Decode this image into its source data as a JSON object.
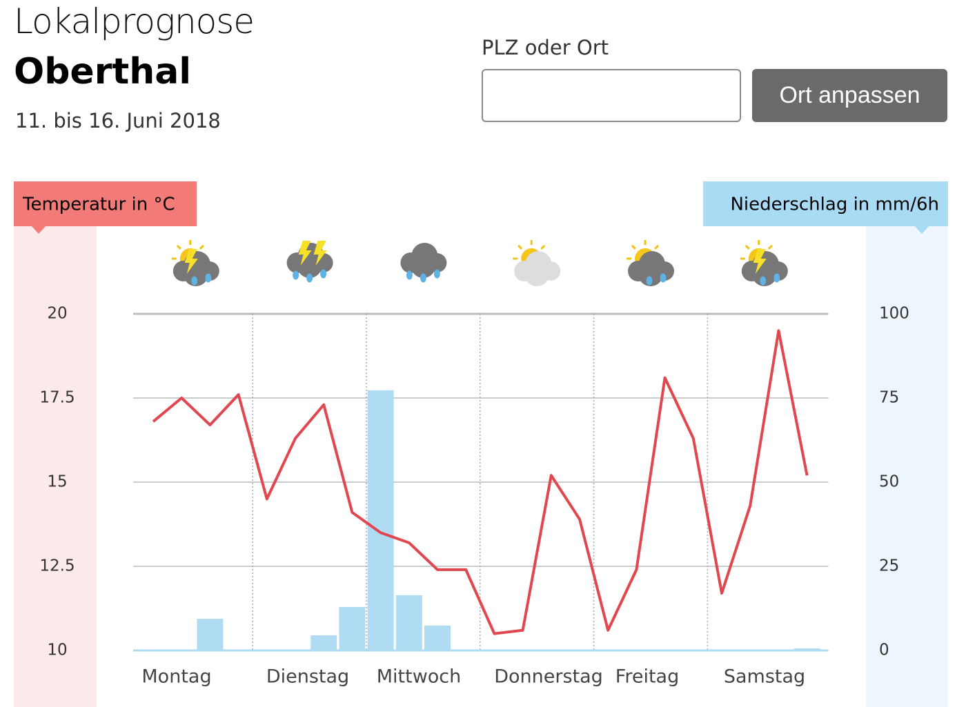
{
  "header": {
    "title": "Lokalprognose",
    "location": "Oberthal",
    "dates": "11. bis 16. Juni 2018"
  },
  "search": {
    "label": "PLZ oder Ort",
    "button": "Ort anpassen"
  },
  "chart_data": {
    "type": "combo",
    "days": [
      "Montag",
      "Dienstag",
      "Mittwoch",
      "Donnerstag",
      "Freitag",
      "Samstag"
    ],
    "series": [
      {
        "name": "Temperatur in °C",
        "type": "line",
        "axis": "y",
        "color": "#e0474f",
        "values": [
          16.8,
          17.5,
          16.7,
          17.6,
          14.5,
          16.3,
          17.3,
          14.1,
          13.5,
          13.2,
          12.4,
          12.4,
          10.5,
          10.6,
          15.2,
          13.9,
          10.6,
          12.4,
          18.1,
          16.3,
          11.7,
          14.3,
          19.5,
          15.2
        ]
      },
      {
        "name": "Niederschlag in mm/6h",
        "type": "bar",
        "axis": "y2",
        "color": "#b0dcf3",
        "values": [
          0,
          0,
          9.4,
          0,
          0.2,
          0,
          4.5,
          12.9,
          77.3,
          16.4,
          7.4,
          0,
          0,
          0,
          0,
          0,
          0.2,
          0,
          0.2,
          0.2,
          0,
          0,
          0,
          0.6
        ]
      }
    ],
    "ylim": [
      10,
      20
    ],
    "yticks": [
      10,
      12.5,
      15,
      17.5,
      20
    ],
    "y2lim": [
      0,
      100
    ],
    "y2ticks": [
      0,
      25,
      50,
      75,
      100
    ],
    "grid": true
  }
}
